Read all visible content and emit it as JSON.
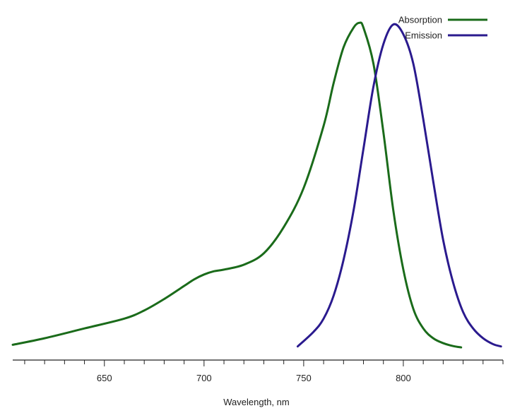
{
  "chart_data": {
    "type": "line",
    "title": "",
    "xlabel": "Wavelength, nm",
    "ylabel": "",
    "xlim": [
      604,
      850
    ],
    "ylim": [
      0,
      1.0
    ],
    "xticks_major": [
      650,
      700,
      750,
      800
    ],
    "xticks_minor_step": 10,
    "grid": false,
    "legend_position": "top-right",
    "series": [
      {
        "name": "Absorption",
        "color": "#1a6b1a",
        "x": [
          604,
          620,
          640,
          660,
          670,
          680,
          690,
          695,
          700,
          705,
          710,
          720,
          730,
          740,
          750,
          760,
          765,
          770,
          775,
          778,
          780,
          785,
          790,
          795,
          800,
          805,
          810,
          815,
          820,
          825,
          829
        ],
        "y": [
          0.01,
          0.03,
          0.06,
          0.09,
          0.115,
          0.15,
          0.19,
          0.21,
          0.225,
          0.235,
          0.24,
          0.255,
          0.29,
          0.37,
          0.49,
          0.68,
          0.81,
          0.92,
          0.98,
          0.995,
          0.98,
          0.87,
          0.66,
          0.42,
          0.24,
          0.12,
          0.06,
          0.03,
          0.015,
          0.006,
          0.002
        ]
      },
      {
        "name": "Emission",
        "color": "#2a1a8e",
        "x": [
          747,
          755,
          760,
          765,
          770,
          775,
          780,
          785,
          790,
          795,
          800,
          805,
          810,
          815,
          820,
          825,
          830,
          835,
          840,
          845,
          849
        ],
        "y": [
          0.005,
          0.05,
          0.09,
          0.16,
          0.27,
          0.42,
          0.61,
          0.8,
          0.93,
          0.99,
          0.96,
          0.87,
          0.7,
          0.51,
          0.33,
          0.2,
          0.11,
          0.06,
          0.03,
          0.012,
          0.005
        ]
      }
    ]
  }
}
